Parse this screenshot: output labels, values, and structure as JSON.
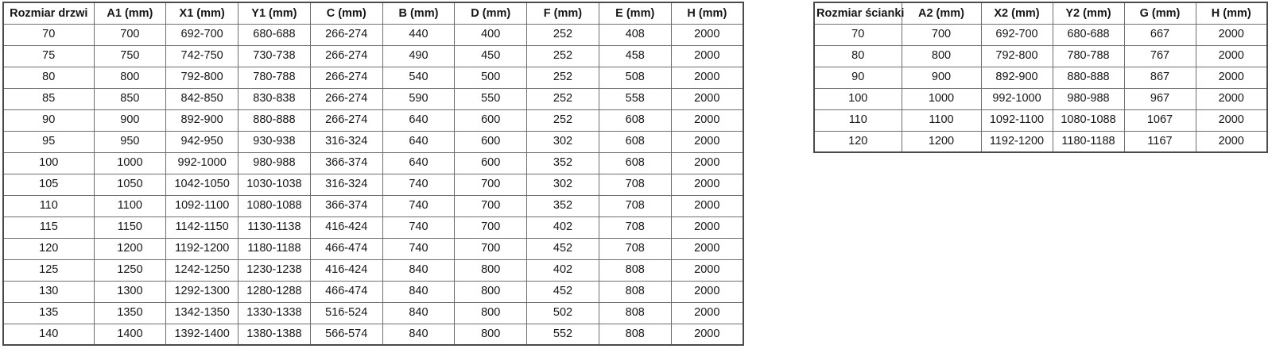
{
  "colors": {
    "background": "#ffffff",
    "text": "#161616",
    "border_inner": "#6e6e6e",
    "border_outer": "#4a4a4a"
  },
  "tables": {
    "doors": {
      "name": "door-sizes-table",
      "headers": [
        "Rozmiar drzwi",
        "A1 (mm)",
        "X1 (mm)",
        "Y1 (mm)",
        "C (mm)",
        "B (mm)",
        "D (mm)",
        "F (mm)",
        "E (mm)",
        "H (mm)"
      ],
      "rows": [
        [
          "70",
          "700",
          "692-700",
          "680-688",
          "266-274",
          "440",
          "400",
          "252",
          "408",
          "2000"
        ],
        [
          "75",
          "750",
          "742-750",
          "730-738",
          "266-274",
          "490",
          "450",
          "252",
          "458",
          "2000"
        ],
        [
          "80",
          "800",
          "792-800",
          "780-788",
          "266-274",
          "540",
          "500",
          "252",
          "508",
          "2000"
        ],
        [
          "85",
          "850",
          "842-850",
          "830-838",
          "266-274",
          "590",
          "550",
          "252",
          "558",
          "2000"
        ],
        [
          "90",
          "900",
          "892-900",
          "880-888",
          "266-274",
          "640",
          "600",
          "252",
          "608",
          "2000"
        ],
        [
          "95",
          "950",
          "942-950",
          "930-938",
          "316-324",
          "640",
          "600",
          "302",
          "608",
          "2000"
        ],
        [
          "100",
          "1000",
          "992-1000",
          "980-988",
          "366-374",
          "640",
          "600",
          "352",
          "608",
          "2000"
        ],
        [
          "105",
          "1050",
          "1042-1050",
          "1030-1038",
          "316-324",
          "740",
          "700",
          "302",
          "708",
          "2000"
        ],
        [
          "110",
          "1100",
          "1092-1100",
          "1080-1088",
          "366-374",
          "740",
          "700",
          "352",
          "708",
          "2000"
        ],
        [
          "115",
          "1150",
          "1142-1150",
          "1130-1138",
          "416-424",
          "740",
          "700",
          "402",
          "708",
          "2000"
        ],
        [
          "120",
          "1200",
          "1192-1200",
          "1180-1188",
          "466-474",
          "740",
          "700",
          "452",
          "708",
          "2000"
        ],
        [
          "125",
          "1250",
          "1242-1250",
          "1230-1238",
          "416-424",
          "840",
          "800",
          "402",
          "808",
          "2000"
        ],
        [
          "130",
          "1300",
          "1292-1300",
          "1280-1288",
          "466-474",
          "840",
          "800",
          "452",
          "808",
          "2000"
        ],
        [
          "135",
          "1350",
          "1342-1350",
          "1330-1338",
          "516-524",
          "840",
          "800",
          "502",
          "808",
          "2000"
        ],
        [
          "140",
          "1400",
          "1392-1400",
          "1380-1388",
          "566-574",
          "840",
          "800",
          "552",
          "808",
          "2000"
        ]
      ]
    },
    "walls": {
      "name": "wall-panel-sizes-table",
      "headers": [
        "Rozmiar ścianki",
        "A2 (mm)",
        "X2 (mm)",
        "Y2 (mm)",
        "G (mm)",
        "H (mm)"
      ],
      "rows": [
        [
          "70",
          "700",
          "692-700",
          "680-688",
          "667",
          "2000"
        ],
        [
          "80",
          "800",
          "792-800",
          "780-788",
          "767",
          "2000"
        ],
        [
          "90",
          "900",
          "892-900",
          "880-888",
          "867",
          "2000"
        ],
        [
          "100",
          "1000",
          "992-1000",
          "980-988",
          "967",
          "2000"
        ],
        [
          "110",
          "1100",
          "1092-1100",
          "1080-1088",
          "1067",
          "2000"
        ],
        [
          "120",
          "1200",
          "1192-1200",
          "1180-1188",
          "1167",
          "2000"
        ]
      ]
    }
  }
}
